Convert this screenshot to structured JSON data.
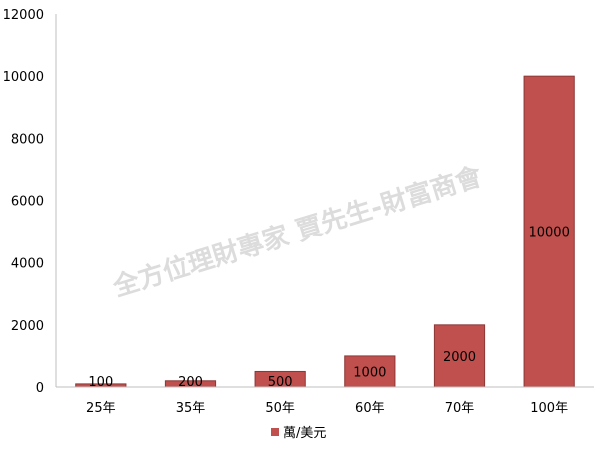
{
  "chart_data": {
    "type": "bar",
    "categories": [
      "25年",
      "35年",
      "50年",
      "60年",
      "70年",
      "100年"
    ],
    "series": [
      {
        "name": "萬/美元",
        "values": [
          100,
          200,
          500,
          1000,
          2000,
          10000
        ],
        "color": "#c0504d"
      }
    ],
    "ylim": [
      0,
      12000
    ],
    "yticks": [
      0,
      2000,
      4000,
      6000,
      8000,
      10000,
      12000
    ],
    "grid": false,
    "legend_position": "bottom",
    "data_labels": [
      "100",
      "200",
      "500",
      "1000",
      "2000",
      "10000"
    ],
    "bar_border_color": "#8c3836"
  },
  "watermark": {
    "text": "全方位理財專家 賈先生-財富商會"
  }
}
